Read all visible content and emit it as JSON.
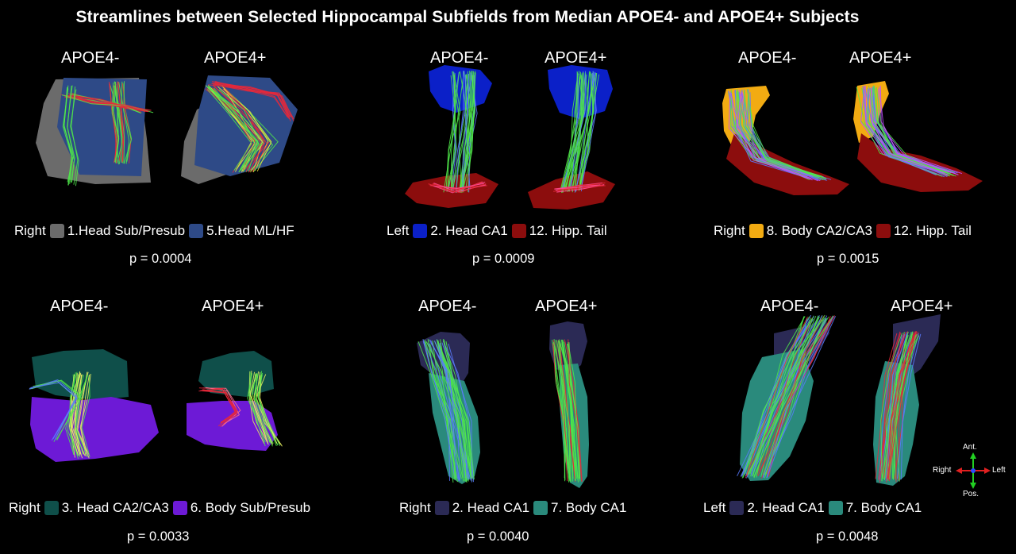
{
  "title": "Streamlines between Selected Hippocampal Subfields from Median APOE4- and APOE4+ Subjects",
  "group_labels": {
    "neg": "APOE4-",
    "pos": "APOE4+"
  },
  "panels": [
    {
      "side": "Right",
      "regions": [
        {
          "label": "1.Head Sub/Presub",
          "color": "#6b6b6b"
        },
        {
          "label": "5.Head ML/HF",
          "color": "#2e4a87"
        }
      ],
      "p": "p = 0.0004"
    },
    {
      "side": "Left",
      "regions": [
        {
          "label": "2. Head CA1",
          "color": "#0b20c8"
        },
        {
          "label": "12. Hipp. Tail",
          "color": "#8c0d0d"
        }
      ],
      "p": "p = 0.0009"
    },
    {
      "side": "Right",
      "regions": [
        {
          "label": "8. Body CA2/CA3",
          "color": "#f2ab12"
        },
        {
          "label": "12. Hipp. Tail",
          "color": "#8c0d0d"
        }
      ],
      "p": "p = 0.0015"
    },
    {
      "side": "Right",
      "regions": [
        {
          "label": "3. Head CA2/CA3",
          "color": "#0f4f4a"
        },
        {
          "label": "6. Body Sub/Presub",
          "color": "#6d1ad6"
        }
      ],
      "p": "p = 0.0033"
    },
    {
      "side": "Right",
      "regions": [
        {
          "label": "2. Head CA1",
          "color": "#2b2a55"
        },
        {
          "label": "7. Body CA1",
          "color": "#2a8a7c"
        }
      ],
      "p": "p = 0.0040"
    },
    {
      "side": "Left",
      "regions": [
        {
          "label": "2. Head CA1",
          "color": "#2b2a55"
        },
        {
          "label": "7. Body CA1",
          "color": "#2a8a7c"
        }
      ],
      "p": "p = 0.0048"
    }
  ],
  "orientation": {
    "ant": "Ant.",
    "pos": "Pos.",
    "right": "Right",
    "left": "Left"
  },
  "colors": {
    "streamline_green": "#4fe84a",
    "streamline_red": "#e8283a",
    "streamline_blue": "#5a7bff",
    "background": "#000000"
  }
}
